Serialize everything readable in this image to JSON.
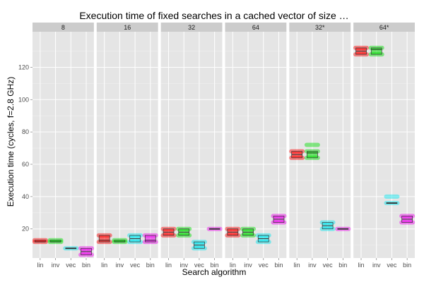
{
  "chart_data": {
    "type": "boxplot",
    "title": "Execution time of fixed searches in a cached vector of size …",
    "xlabel": "Search algorithm",
    "ylabel": "Execution time (cycles, f=2.8 GHz)",
    "categories": [
      "lin",
      "inv",
      "vec",
      "bin"
    ],
    "yticks": [
      20,
      40,
      60,
      80,
      100,
      120
    ],
    "ylim": [
      2,
      142
    ],
    "grid": true,
    "category_colors": {
      "lin": "#ff0000",
      "inv": "#00dd00",
      "vec": "#00e5ee",
      "bin": "#ee00ee"
    },
    "panels": [
      {
        "label": "8",
        "series": [
          {
            "category": "lin",
            "lower": 12,
            "q1": 12,
            "median": 12,
            "q3": 13,
            "upper": 13,
            "points": [
              12,
              13
            ]
          },
          {
            "category": "inv",
            "lower": 12,
            "q1": 12,
            "median": 12,
            "q3": 13,
            "upper": 13,
            "points": [
              12,
              13
            ]
          },
          {
            "category": "vec",
            "lower": 8,
            "q1": 8,
            "median": 8,
            "q3": 8,
            "upper": 8,
            "points": [
              8
            ]
          },
          {
            "category": "bin",
            "lower": 4,
            "q1": 4,
            "median": 6,
            "q3": 8,
            "upper": 8,
            "points": [
              4,
              8
            ]
          }
        ]
      },
      {
        "label": "16",
        "series": [
          {
            "category": "lin",
            "lower": 12,
            "q1": 12,
            "median": 13,
            "q3": 16,
            "upper": 16,
            "points": [
              12,
              16
            ]
          },
          {
            "category": "inv",
            "lower": 12,
            "q1": 12,
            "median": 12,
            "q3": 13,
            "upper": 13,
            "points": [
              12,
              13
            ]
          },
          {
            "category": "vec",
            "lower": 12,
            "q1": 12,
            "median": 14,
            "q3": 16,
            "upper": 16,
            "points": [
              12,
              16
            ]
          },
          {
            "category": "bin",
            "lower": 12,
            "q1": 12,
            "median": 13,
            "q3": 16,
            "upper": 16,
            "points": [
              12,
              16
            ]
          }
        ]
      },
      {
        "label": "32",
        "series": [
          {
            "category": "lin",
            "lower": 16,
            "q1": 16,
            "median": 18,
            "q3": 20,
            "upper": 20,
            "points": [
              16,
              20
            ]
          },
          {
            "category": "inv",
            "lower": 16,
            "q1": 16,
            "median": 18,
            "q3": 20,
            "upper": 20,
            "points": [
              16,
              20
            ]
          },
          {
            "category": "vec",
            "lower": 8,
            "q1": 8,
            "median": 10,
            "q3": 12,
            "upper": 12,
            "points": [
              8,
              12
            ]
          },
          {
            "category": "bin",
            "lower": 20,
            "q1": 20,
            "median": 20,
            "q3": 20,
            "upper": 20,
            "points": [
              20
            ]
          }
        ]
      },
      {
        "label": "64",
        "series": [
          {
            "category": "lin",
            "lower": 16,
            "q1": 16,
            "median": 18,
            "q3": 20,
            "upper": 20,
            "points": [
              16,
              20
            ]
          },
          {
            "category": "inv",
            "lower": 16,
            "q1": 16,
            "median": 18,
            "q3": 20,
            "upper": 20,
            "points": [
              16,
              20
            ]
          },
          {
            "category": "vec",
            "lower": 12,
            "q1": 12,
            "median": 14,
            "q3": 16,
            "upper": 16,
            "points": [
              12,
              16
            ]
          },
          {
            "category": "bin",
            "lower": 24,
            "q1": 24,
            "median": 26,
            "q3": 28,
            "upper": 28,
            "points": [
              24,
              28
            ]
          }
        ]
      },
      {
        "label": "32*",
        "series": [
          {
            "category": "lin",
            "lower": 64,
            "q1": 64,
            "median": 66,
            "q3": 68,
            "upper": 68,
            "points": [
              64,
              68
            ]
          },
          {
            "category": "inv",
            "lower": 64,
            "q1": 64,
            "median": 67,
            "q3": 68,
            "upper": 68,
            "points": [
              64,
              68,
              72
            ]
          },
          {
            "category": "vec",
            "lower": 20,
            "q1": 20,
            "median": 22,
            "q3": 24,
            "upper": 24,
            "points": [
              20,
              24
            ]
          },
          {
            "category": "bin",
            "lower": 20,
            "q1": 20,
            "median": 20,
            "q3": 20,
            "upper": 20,
            "points": [
              20
            ]
          }
        ]
      },
      {
        "label": "64*",
        "series": [
          {
            "category": "lin",
            "lower": 128,
            "q1": 128,
            "median": 130,
            "q3": 132,
            "upper": 132,
            "points": [
              128,
              132
            ]
          },
          {
            "category": "inv",
            "lower": 128,
            "q1": 128,
            "median": 131,
            "q3": 132,
            "upper": 132,
            "points": [
              128,
              132
            ]
          },
          {
            "category": "vec",
            "lower": 36,
            "q1": 36,
            "median": 36,
            "q3": 36,
            "upper": 36,
            "points": [
              36,
              40
            ]
          },
          {
            "category": "bin",
            "lower": 24,
            "q1": 24,
            "median": 26,
            "q3": 28,
            "upper": 28,
            "points": [
              24,
              28
            ]
          }
        ]
      }
    ]
  }
}
